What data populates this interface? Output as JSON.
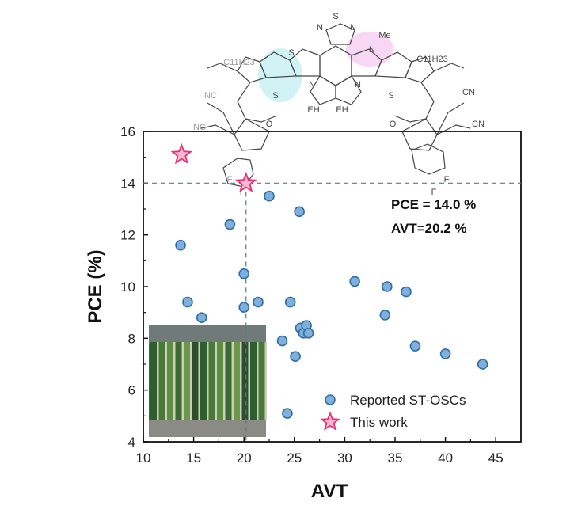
{
  "chart_data": {
    "type": "scatter",
    "xlabel": "AVT",
    "ylabel": "PCE (%)",
    "xlim": [
      10,
      47.5
    ],
    "ylim": [
      4,
      16
    ],
    "xticks": [
      10,
      15,
      20,
      25,
      30,
      35,
      40,
      45
    ],
    "yticks": [
      4,
      6,
      8,
      10,
      12,
      14,
      16
    ],
    "grid": false,
    "legend_position": "bottom-right",
    "series": [
      {
        "name": "Reported ST-OSCs",
        "marker": "circle",
        "color": "#7fb0dc",
        "edge_color": "#2f6ea8",
        "points": [
          {
            "x": 13.7,
            "y": 11.6
          },
          {
            "x": 14.4,
            "y": 9.4
          },
          {
            "x": 15.8,
            "y": 8.8
          },
          {
            "x": 18.6,
            "y": 12.4
          },
          {
            "x": 20.0,
            "y": 10.5
          },
          {
            "x": 20.0,
            "y": 9.2
          },
          {
            "x": 21.4,
            "y": 9.4
          },
          {
            "x": 22.5,
            "y": 13.5
          },
          {
            "x": 23.8,
            "y": 7.9
          },
          {
            "x": 24.6,
            "y": 9.4
          },
          {
            "x": 25.1,
            "y": 7.3
          },
          {
            "x": 25.5,
            "y": 12.9
          },
          {
            "x": 25.6,
            "y": 8.4
          },
          {
            "x": 25.9,
            "y": 8.2
          },
          {
            "x": 26.2,
            "y": 8.5
          },
          {
            "x": 26.4,
            "y": 8.2
          },
          {
            "x": 24.3,
            "y": 5.1
          },
          {
            "x": 31.0,
            "y": 10.2
          },
          {
            "x": 34.2,
            "y": 10.0
          },
          {
            "x": 34.0,
            "y": 8.9
          },
          {
            "x": 36.1,
            "y": 9.8
          },
          {
            "x": 37.0,
            "y": 7.7
          },
          {
            "x": 40.0,
            "y": 7.4
          },
          {
            "x": 43.7,
            "y": 7.0
          }
        ]
      },
      {
        "name": "This work",
        "marker": "star",
        "color": "#f7b8d2",
        "edge_color": "#e8337a",
        "points": [
          {
            "x": 13.8,
            "y": 15.1
          },
          {
            "x": 20.2,
            "y": 14.0
          }
        ]
      }
    ],
    "reference_lines": [
      {
        "orientation": "horizontal",
        "value": 14.0,
        "style": "dashed",
        "color": "#4a78b0"
      },
      {
        "orientation": "vertical",
        "value": 20.2,
        "style": "dashed",
        "color": "#4a78b0"
      }
    ],
    "annotations": [
      "PCE = 14.0 %",
      "AVT=20.2 %"
    ],
    "inset_image": "photo-green-wall"
  },
  "molecule": {
    "labels": {
      "s_top": "S",
      "n_left": "N",
      "n_right": "N",
      "me": "Me",
      "c11h23_left": "C11H23",
      "c11h23_right": "C11H23",
      "s_ring1": "S",
      "s_ring2": "S",
      "s_ring3": "S",
      "s_ring4": "S",
      "n_core_left": "N",
      "n_core_right": "N",
      "n_pyrrole": "N",
      "eh_left": "EH",
      "eh_right": "EH",
      "cn_1": "NC",
      "cn_2": "NC",
      "cn_3": "CN",
      "cn_4": "CN",
      "o_left": "O",
      "o_right": "O",
      "f_1": "F",
      "f_2": "F",
      "f_3": "F",
      "f_4": "F"
    },
    "highlight_colors": {
      "cyan": "#9ee3ea",
      "pink": "#f1b8ef"
    }
  }
}
